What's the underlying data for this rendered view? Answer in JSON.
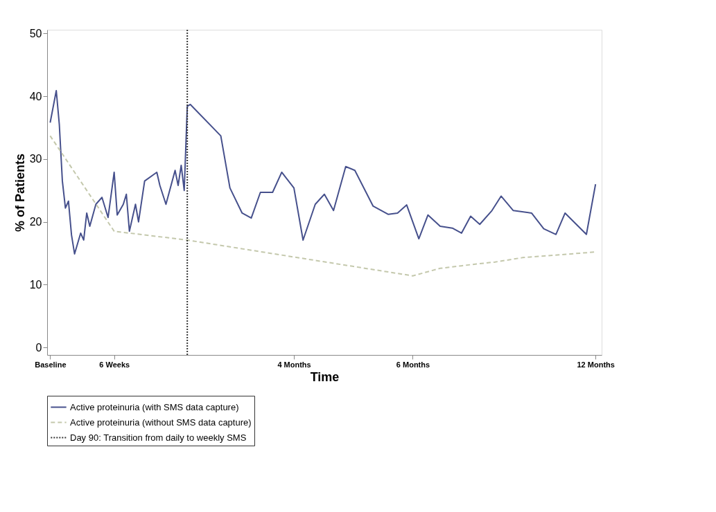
{
  "chart_data": {
    "type": "line",
    "xlabel": "Time",
    "ylabel": "% of Patients",
    "categories": [
      "Baseline",
      null,
      null,
      null,
      null,
      null,
      null,
      null,
      null,
      null,
      null,
      null,
      null,
      null,
      null,
      null,
      null,
      null,
      null,
      null,
      null,
      "6 Weeks",
      null,
      null,
      null,
      null,
      null,
      null,
      null,
      null,
      null,
      null,
      null,
      null,
      null,
      null,
      null,
      null,
      null,
      null,
      null,
      null,
      null,
      null,
      null,
      null,
      null,
      null,
      null,
      null,
      null,
      null,
      null,
      null,
      null,
      null,
      null,
      null,
      null,
      null,
      null,
      null,
      null,
      null,
      null,
      null,
      null,
      null,
      null,
      null,
      null,
      null,
      null,
      null,
      null,
      null,
      null,
      null,
      null,
      null,
      "4 Months",
      null,
      null,
      null,
      null,
      null,
      null,
      null,
      null,
      null,
      null,
      null,
      null,
      null,
      null,
      null,
      null,
      null,
      null,
      null,
      null,
      null,
      null,
      null,
      null,
      null,
      null,
      null,
      null,
      null,
      null,
      null,
      null,
      null,
      null,
      null,
      null,
      null,
      null,
      "6 Months",
      null,
      null,
      null,
      null,
      null,
      null,
      null,
      null,
      null,
      null,
      null,
      null,
      null,
      null,
      null,
      null,
      null,
      null,
      null,
      null,
      null,
      null,
      null,
      null,
      null,
      null,
      null,
      null,
      null,
      null,
      null,
      null,
      null,
      null,
      null,
      null,
      null,
      null,
      null,
      null,
      null,
      null,
      null,
      null,
      null,
      null,
      null,
      null,
      null,
      null,
      null,
      null,
      null,
      null,
      null,
      null,
      null,
      null,
      null,
      "12 Months",
      null
    ],
    "ylim": [
      -1.2,
      50.6
    ],
    "yticks": [
      0,
      10,
      20,
      30,
      40,
      50
    ],
    "grid": false,
    "legend": "bottom",
    "marker": "none",
    "series": [
      {
        "name": "Active proteinuria (with SMS data capture)",
        "color": "#46508c",
        "line_style": "solid",
        "values": [
          35.8,
          null,
          40.9,
          35.5,
          26.5,
          22.2,
          23.3,
          17.9,
          14.9,
          null,
          18.2,
          17.1,
          21.4,
          19.3,
          null,
          22.8,
          null,
          23.9,
          null,
          20.7,
          null,
          27.9,
          21.1,
          null,
          22.8,
          24.4,
          18.5,
          null,
          22.8,
          20.0,
          null,
          26.5,
          null,
          null,
          null,
          27.9,
          25.8,
          null,
          22.8,
          null,
          null,
          28.2,
          25.8,
          29.0,
          25.0,
          38.4,
          38.7,
          null,
          null,
          null,
          null,
          null,
          null,
          null,
          null,
          null,
          33.7,
          null,
          null,
          25.4,
          null,
          null,
          null,
          21.4,
          null,
          null,
          20.6,
          null,
          null,
          24.7,
          null,
          null,
          null,
          24.7,
          null,
          null,
          27.9,
          null,
          null,
          null,
          25.4,
          null,
          null,
          17.1,
          null,
          null,
          null,
          22.8,
          null,
          null,
          24.4,
          null,
          null,
          21.8,
          null,
          null,
          null,
          28.8,
          null,
          null,
          28.2,
          null,
          null,
          null,
          null,
          null,
          22.5,
          null,
          null,
          null,
          null,
          21.2,
          null,
          null,
          21.4,
          null,
          null,
          22.7,
          null,
          null,
          null,
          17.3,
          null,
          null,
          21.1,
          null,
          null,
          null,
          19.3,
          null,
          null,
          null,
          19.0,
          null,
          null,
          18.2,
          null,
          null,
          20.9,
          null,
          null,
          19.6,
          null,
          null,
          null,
          21.8,
          null,
          null,
          24.1,
          null,
          null,
          null,
          21.8,
          null,
          null,
          null,
          null,
          null,
          21.4,
          null,
          null,
          null,
          18.9,
          null,
          null,
          null,
          18.0,
          null,
          null,
          21.4,
          null,
          null,
          null,
          null,
          null,
          null,
          18.0,
          null,
          null,
          26.0,
          null
        ]
      },
      {
        "name": "Active proteinuria (without SMS data capture)",
        "color": "#c4c8ac",
        "line_style": "dashed",
        "values": [
          33.7,
          null,
          null,
          null,
          null,
          null,
          null,
          null,
          null,
          null,
          null,
          null,
          null,
          null,
          null,
          null,
          null,
          null,
          null,
          null,
          null,
          18.5,
          null,
          null,
          null,
          null,
          null,
          null,
          null,
          null,
          null,
          null,
          null,
          null,
          null,
          null,
          null,
          null,
          null,
          null,
          null,
          null,
          null,
          null,
          null,
          17.1,
          null,
          null,
          null,
          null,
          null,
          null,
          null,
          null,
          null,
          null,
          null,
          null,
          null,
          null,
          null,
          null,
          null,
          null,
          null,
          null,
          null,
          null,
          null,
          null,
          null,
          null,
          null,
          null,
          null,
          null,
          null,
          null,
          null,
          null,
          14.4,
          null,
          null,
          null,
          null,
          null,
          null,
          null,
          null,
          null,
          null,
          null,
          null,
          null,
          null,
          null,
          null,
          null,
          null,
          null,
          null,
          null,
          null,
          null,
          null,
          null,
          null,
          null,
          null,
          null,
          null,
          null,
          null,
          null,
          null,
          null,
          null,
          null,
          null,
          11.4,
          null,
          null,
          null,
          null,
          null,
          null,
          null,
          null,
          12.6,
          null,
          null,
          null,
          null,
          null,
          null,
          13.0,
          null,
          null,
          null,
          null,
          13.3,
          null,
          null,
          null,
          null,
          null,
          13.6,
          null,
          null,
          null,
          null,
          null,
          null,
          null,
          null,
          14.3,
          null,
          null,
          null,
          null,
          null,
          null,
          null,
          null,
          null,
          null,
          null,
          null,
          null,
          null,
          null,
          null,
          null,
          null,
          null,
          null,
          null,
          null,
          null,
          15.2,
          null
        ]
      }
    ],
    "ref_lines": [
      {
        "axis": "x",
        "label": "Day 90: Transition from daily to weekly SMS",
        "color": "#333333",
        "line_style": "dotted"
      }
    ]
  }
}
